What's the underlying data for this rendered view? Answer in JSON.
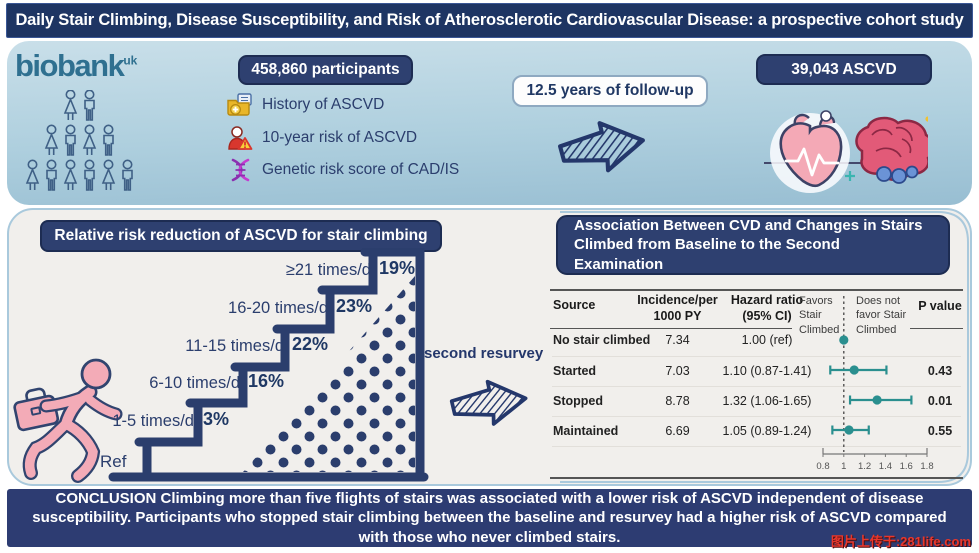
{
  "title": "Daily Stair Climbing, Disease Susceptibility, and Risk of Atherosclerotic Cardiovascular Disease: a prospective cohort study",
  "top_panel": {
    "logo_text": "biobank",
    "logo_sup": "uk",
    "participants_label": "458,860 participants",
    "risk_items": [
      {
        "icon": "folder-plus-icon",
        "label": "History of ASCVD"
      },
      {
        "icon": "person-warning-icon",
        "label": "10-year risk of ASCVD"
      },
      {
        "icon": "dna-icon",
        "label": "Genetic risk score of CAD/IS"
      }
    ],
    "followup_label": "12.5 years of follow-up",
    "outcome_label": "39,043 ASCVD"
  },
  "stair_panel": {
    "header": "Relative risk reduction of ASCVD for stair climbing",
    "ref_label": "Ref",
    "steps": [
      {
        "label": "1-5 times/d",
        "value": "3%"
      },
      {
        "label": "6-10 times/d",
        "value": "16%"
      },
      {
        "label": "11-15 times/d",
        "value": "22%"
      },
      {
        "label": "16-20 times/d",
        "value": "23%"
      },
      {
        "label": "≥21 times/d",
        "value": "19%"
      }
    ],
    "resurvey_label": "second resurvey"
  },
  "table_panel": {
    "header": "Association Between CVD and Changes in Stairs Climbed from Baseline to the Second Examination",
    "col_source": "Source",
    "col_incidence": "Incidence/per\n1000 PY",
    "col_hr": "Hazard ratio\n(95% CI)",
    "col_favors": "Favors\nStair\nClimbed",
    "col_not_favor": "Does not\nfavor Stair\nClimbed",
    "col_p": "P value",
    "rows": [
      {
        "source": "No stair climbed",
        "incidence": "7.34",
        "hr": "1.00 (ref)",
        "p": ""
      },
      {
        "source": "Started",
        "incidence": "7.03",
        "hr": "1.10 (0.87-1.41)",
        "p": "0.43"
      },
      {
        "source": "Stopped",
        "incidence": "8.78",
        "hr": "1.32 (1.06-1.65)",
        "p": "0.01"
      },
      {
        "source": "Maintained",
        "incidence": "6.69",
        "hr": "1.05 (0.89-1.24)",
        "p": "0.55"
      }
    ]
  },
  "chart_data": [
    {
      "type": "bar",
      "title": "Relative risk reduction of ASCVD for stair climbing",
      "categories": [
        "Ref",
        "1-5 times/d",
        "6-10 times/d",
        "11-15 times/d",
        "16-20 times/d",
        "≥21 times/d"
      ],
      "values": [
        0,
        3,
        16,
        22,
        23,
        19
      ],
      "unit": "% relative risk reduction",
      "style": "staircase infographic"
    },
    {
      "type": "scatter",
      "subtype": "forest",
      "title": "Association Between CVD and Changes in Stairs Climbed from Baseline to the Second Examination",
      "axis": {
        "min": 0.8,
        "max": 1.8,
        "ticks": [
          0.8,
          1,
          1.2,
          1.4,
          1.6,
          1.8
        ],
        "reference_line": 1
      },
      "rows": [
        {
          "source": "No stair climbed",
          "incidence_per_1000py": 7.34,
          "hr": 1.0,
          "ci_low": null,
          "ci_high": null,
          "hr_label": "1.00 (ref)",
          "p": null
        },
        {
          "source": "Started",
          "incidence_per_1000py": 7.03,
          "hr": 1.1,
          "ci_low": 0.87,
          "ci_high": 1.41,
          "hr_label": "1.10 (0.87-1.41)",
          "p": 0.43
        },
        {
          "source": "Stopped",
          "incidence_per_1000py": 8.78,
          "hr": 1.32,
          "ci_low": 1.06,
          "ci_high": 1.65,
          "hr_label": "1.32 (1.06-1.65)",
          "p": 0.01
        },
        {
          "source": "Maintained",
          "incidence_per_1000py": 6.69,
          "hr": 1.05,
          "ci_low": 0.89,
          "ci_high": 1.24,
          "hr_label": "1.05 (0.89-1.24)",
          "p": 0.55
        }
      ]
    }
  ],
  "conclusion": "CONCLUSION Climbing more than five flights of stairs was associated with a lower risk of ASCVD  independent of disease susceptibility. Participants who stopped stair climbing between the baseline and resurvey had a higher risk of ASCVD compared with those who never climbed stairs.",
  "watermark": "图片上传于:281life.com",
  "colors": {
    "navy_dark": "#1e3563",
    "navy_box": "#2e4070",
    "navy_stair": "#2b3e6d",
    "teal_forest": "#2a8f8f",
    "pink": "#f3abb7",
    "conclusion_bg": "#2d3c72",
    "watermark_red": "#e8372c"
  }
}
